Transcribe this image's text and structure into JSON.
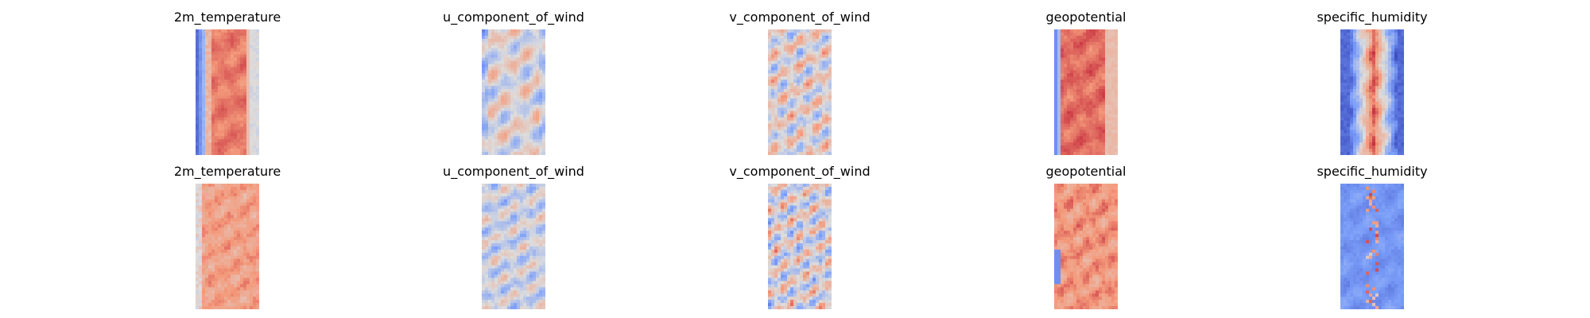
{
  "chart_data": {
    "type": "heatmap",
    "colormap": "coolwarm",
    "colors": {
      "low": "#3b4cc0",
      "mid": "#dddddd",
      "high": "#b40426"
    },
    "axes": "off",
    "grid": false,
    "layout": {
      "rows": 2,
      "cols": 5
    },
    "panels": [
      {
        "title": "2m_temperature",
        "row": 0,
        "col": 0,
        "pattern": "temp_true"
      },
      {
        "title": "u_component_of_wind",
        "row": 0,
        "col": 1,
        "pattern": "u_true"
      },
      {
        "title": "v_component_of_wind",
        "row": 0,
        "col": 2,
        "pattern": "v_true"
      },
      {
        "title": "geopotential",
        "row": 0,
        "col": 3,
        "pattern": "geo_true"
      },
      {
        "title": "specific_humidity",
        "row": 0,
        "col": 4,
        "pattern": "hum_true"
      },
      {
        "title": "2m_temperature",
        "row": 1,
        "col": 0,
        "pattern": "temp_pred"
      },
      {
        "title": "u_component_of_wind",
        "row": 1,
        "col": 1,
        "pattern": "u_pred"
      },
      {
        "title": "v_component_of_wind",
        "row": 1,
        "col": 2,
        "pattern": "v_pred"
      },
      {
        "title": "geopotential",
        "row": 1,
        "col": 3,
        "pattern": "geo_pred"
      },
      {
        "title": "specific_humidity",
        "row": 1,
        "col": 4,
        "pattern": "hum_pred"
      }
    ]
  }
}
